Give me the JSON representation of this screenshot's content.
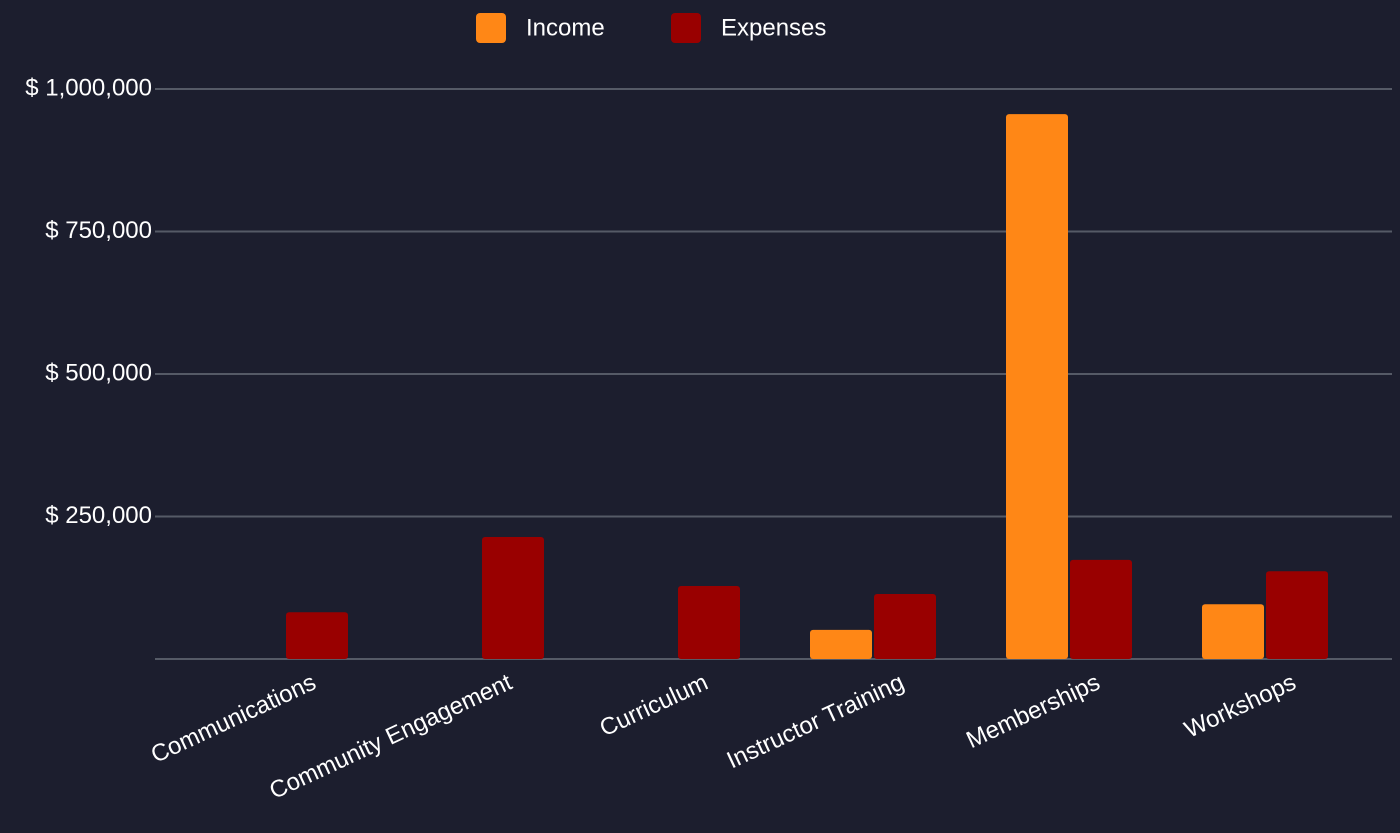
{
  "chart_data": {
    "type": "bar",
    "categories": [
      "Communications",
      "Community Engagement",
      "Curriculum",
      "Instructor Training",
      "Memberships",
      "Workshops"
    ],
    "series": [
      {
        "name": "Income",
        "color": "#ff8716",
        "values": [
          0,
          0,
          0,
          51000,
          956000,
          96000
        ]
      },
      {
        "name": "Expenses",
        "color": "#990000",
        "values": [
          82000,
          214000,
          128000,
          114000,
          174000,
          154000
        ]
      }
    ],
    "ylim": [
      0,
      1000000
    ],
    "yticks": [
      {
        "value": 250000,
        "label": "$ 250,000"
      },
      {
        "value": 500000,
        "label": "$ 500,000"
      },
      {
        "value": 750000,
        "label": "$ 750,000"
      },
      {
        "value": 1000000,
        "label": "$ 1,000,000"
      }
    ],
    "grid": true,
    "legend": "top"
  }
}
